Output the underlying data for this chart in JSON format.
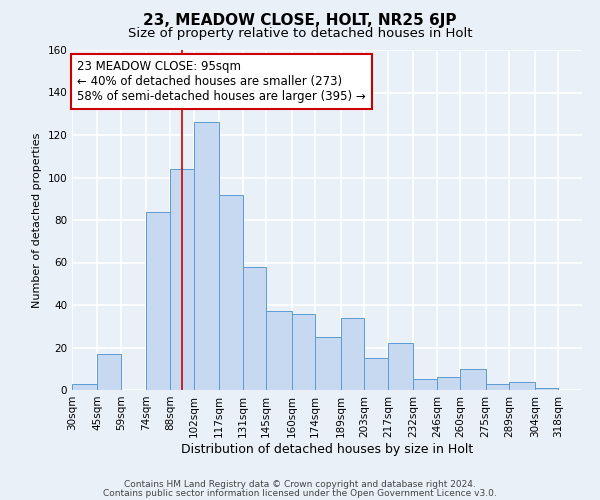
{
  "title1": "23, MEADOW CLOSE, HOLT, NR25 6JP",
  "title2": "Size of property relative to detached houses in Holt",
  "xlabel": "Distribution of detached houses by size in Holt",
  "ylabel": "Number of detached properties",
  "bin_labels": [
    "30sqm",
    "45sqm",
    "59sqm",
    "74sqm",
    "88sqm",
    "102sqm",
    "117sqm",
    "131sqm",
    "145sqm",
    "160sqm",
    "174sqm",
    "189sqm",
    "203sqm",
    "217sqm",
    "232sqm",
    "246sqm",
    "260sqm",
    "275sqm",
    "289sqm",
    "304sqm",
    "318sqm"
  ],
  "bin_edges": [
    30,
    45,
    59,
    74,
    88,
    102,
    117,
    131,
    145,
    160,
    174,
    189,
    203,
    217,
    232,
    246,
    260,
    275,
    289,
    304,
    318
  ],
  "bar_heights": [
    3,
    17,
    0,
    84,
    104,
    126,
    92,
    58,
    37,
    36,
    25,
    34,
    15,
    22,
    5,
    6,
    10,
    3,
    4,
    1,
    0
  ],
  "bar_color": "#c6d9f0",
  "bar_edge_color": "#5b9bd5",
  "property_line_x": 95,
  "property_line_color": "#cc0000",
  "annotation_text": "23 MEADOW CLOSE: 95sqm\n← 40% of detached houses are smaller (273)\n58% of semi-detached houses are larger (395) →",
  "annotation_box_color": "#ffffff",
  "annotation_box_edge_color": "#cc0000",
  "ylim": [
    0,
    160
  ],
  "yticks": [
    0,
    20,
    40,
    60,
    80,
    100,
    120,
    140,
    160
  ],
  "footer_line1": "Contains HM Land Registry data © Crown copyright and database right 2024.",
  "footer_line2": "Contains public sector information licensed under the Open Government Licence v3.0.",
  "bg_color": "#eaf0f8",
  "plot_bg_color": "#eaf0f8",
  "grid_color": "#ffffff",
  "title1_fontsize": 11,
  "title2_fontsize": 9.5,
  "xlabel_fontsize": 9,
  "ylabel_fontsize": 8,
  "tick_fontsize": 7.5,
  "annotation_fontsize": 8.5,
  "footer_fontsize": 6.5
}
